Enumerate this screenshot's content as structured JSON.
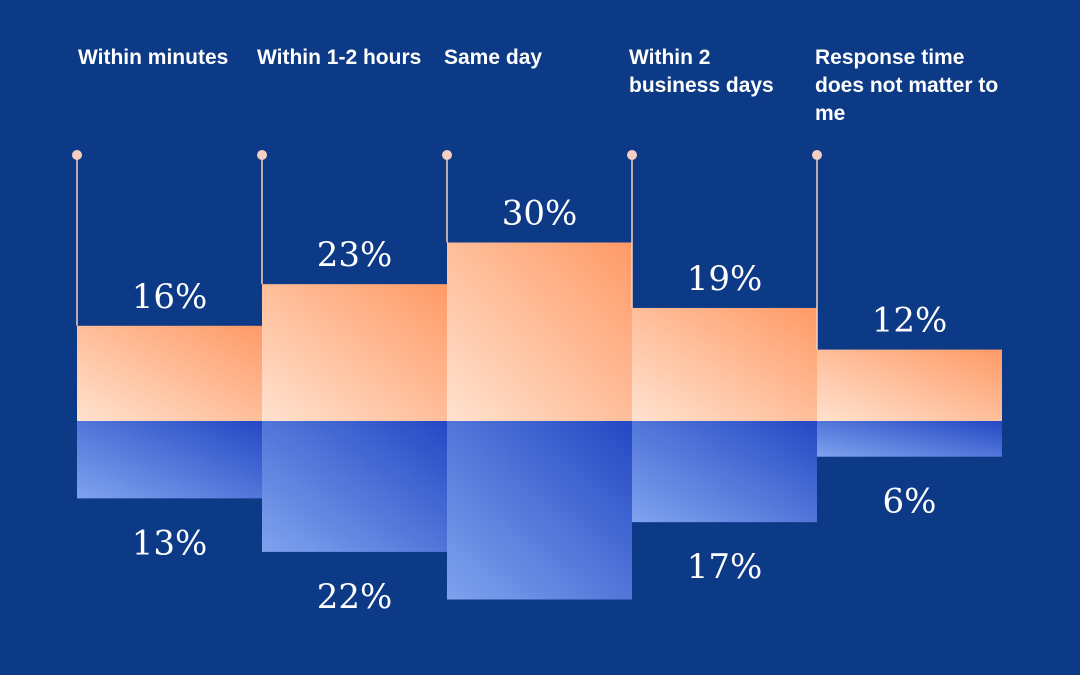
{
  "chart_data": {
    "type": "bar",
    "categories": [
      "Within minutes",
      "Within 1-2 hours",
      "Same day",
      "Within 2 business days",
      "Response time does not matter to me"
    ],
    "series": [
      {
        "values": [
          16,
          23,
          30,
          19,
          12
        ],
        "labels": [
          "16%",
          "23%",
          "30%",
          "19%",
          "12%"
        ]
      },
      {
        "values": [
          13,
          22,
          30,
          17,
          6
        ],
        "labels": [
          "13%",
          "22%",
          "",
          "17%",
          "6%"
        ]
      }
    ],
    "ylim": [
      0,
      30
    ],
    "grid": false,
    "legend": "none"
  },
  "colors": {
    "background": "#0d3a86",
    "top_series_light": "#ffe2cf",
    "top_series_dark": "#ff9a66",
    "bottom_series_light": "#7fa3ee",
    "bottom_series_dark": "#2448c4",
    "marker": "#f6cfc1",
    "text": "#ffffff"
  }
}
